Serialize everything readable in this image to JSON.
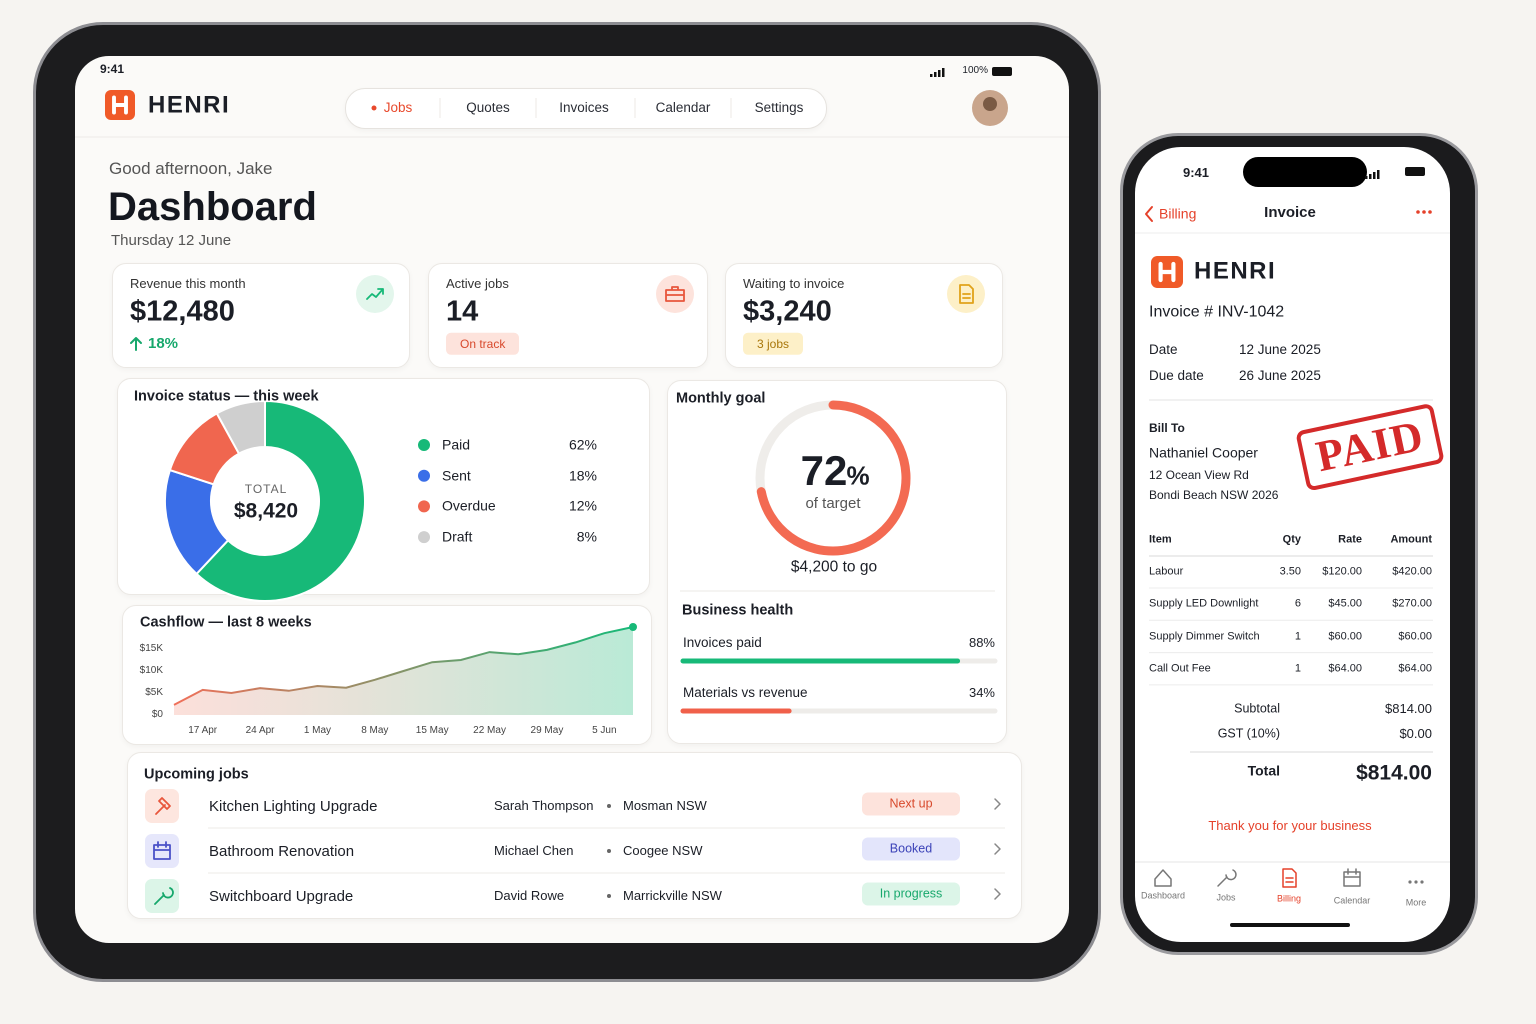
{
  "status": {
    "time": "9:41",
    "battery": "100%"
  },
  "tablet": {
    "brand": "HENRI",
    "nav": [
      "Jobs",
      "Quotes",
      "Invoices",
      "Calendar",
      "Settings"
    ],
    "greeting": "Good afternoon, Jake",
    "title": "Dashboard",
    "date": "Thursday 12 June",
    "kpis": [
      {
        "label": "Revenue this month",
        "value": "$12,480",
        "note": "18%"
      },
      {
        "label": "Active jobs",
        "value": "14",
        "note": "On track"
      },
      {
        "label": "Waiting to invoice",
        "value": "$3,240",
        "note": "3 jobs"
      }
    ],
    "goal": {
      "title": "Monthly goal",
      "value": 72,
      "unit": "%",
      "caption": "of target",
      "remaining": "$4,200 to go",
      "color": "#f36a52"
    },
    "health": {
      "title": "Business health",
      "items": [
        {
          "name": "Invoices paid",
          "value": 88,
          "value_label": "88%",
          "color": "#17b978"
        },
        {
          "name": "Materials vs revenue",
          "value": 34,
          "value_label": "34%",
          "color": "#f0604a"
        }
      ]
    },
    "jobs": {
      "title": "Upcoming jobs",
      "rows": [
        {
          "title": "Kitchen Lighting Upgrade",
          "client": "Sarah Thompson",
          "location": "Mosman NSW",
          "status": "Next up"
        },
        {
          "title": "Bathroom Renovation",
          "client": "Michael Chen",
          "location": "Coogee NSW",
          "status": "Booked"
        },
        {
          "title": "Switchboard Upgrade",
          "client": "David Rowe",
          "location": "Marrickville NSW",
          "status": "In progress"
        }
      ]
    }
  },
  "chart_data": [
    {
      "type": "pie",
      "title": "Invoice status — this week",
      "center_label": "TOTAL",
      "center_value": "$8,420",
      "categories": [
        "Paid",
        "Sent",
        "Overdue",
        "Draft"
      ],
      "values": [
        62,
        18,
        12,
        8
      ],
      "value_labels": [
        "62%",
        "18%",
        "12%",
        "8%"
      ],
      "colors": [
        "#17b978",
        "#3a6ee8",
        "#f0664f",
        "#cfcfcf"
      ]
    },
    {
      "type": "line",
      "title": "Cashflow — last 8 weeks",
      "categories": [
        null,
        "17 Apr",
        null,
        "24 Apr",
        null,
        "1 May",
        null,
        "8 May",
        null,
        "15 May",
        null,
        "22 May",
        null,
        "29 May",
        null,
        "5 Jun",
        null
      ],
      "values": [
        2300,
        5700,
        5000,
        6100,
        5500,
        6600,
        6200,
        8000,
        10000,
        12000,
        12500,
        14300,
        13800,
        14800,
        16500,
        18600,
        20000
      ],
      "ylim": [
        0,
        20000
      ],
      "yticks": [
        {
          "value": 0,
          "label": "$0"
        },
        {
          "value": 5000,
          "label": "$5K"
        },
        {
          "value": 10000,
          "label": "$10K"
        },
        {
          "value": 15000,
          "label": "$15K"
        }
      ],
      "colors": [
        "#f0705a",
        "#17b978"
      ]
    }
  ],
  "phone": {
    "back": "Billing",
    "title": "Invoice",
    "brand": "HENRI",
    "invoice_no": "Invoice # INV-1042",
    "meta": [
      [
        "Date",
        "12 June 2025"
      ],
      [
        "Due date",
        "26 June 2025"
      ]
    ],
    "bill_to": {
      "heading": "Bill To",
      "name": "Nathaniel Cooper",
      "address": [
        "12 Ocean View Rd",
        "Bondi Beach NSW 2026"
      ]
    },
    "stamp": "PAID",
    "table": {
      "header": [
        "Item",
        "Qty",
        "Rate",
        "Amount"
      ],
      "rows": [
        [
          "Labour",
          "3.50",
          "$120.00",
          "$420.00"
        ],
        [
          "Supply LED Downlight",
          "6",
          "$45.00",
          "$270.00"
        ],
        [
          "Supply Dimmer Switch",
          "1",
          "$60.00",
          "$60.00"
        ],
        [
          "Call Out Fee",
          "1",
          "$64.00",
          "$64.00"
        ]
      ]
    },
    "totals": [
      [
        "Subtotal",
        "$814.00"
      ],
      [
        "GST (10%)",
        "$0.00"
      ]
    ],
    "total": [
      "Total",
      "$814.00"
    ],
    "thanks": "Thank you for your business",
    "tabs": [
      "Dashboard",
      "Jobs",
      "Billing",
      "Calendar",
      "More"
    ]
  }
}
